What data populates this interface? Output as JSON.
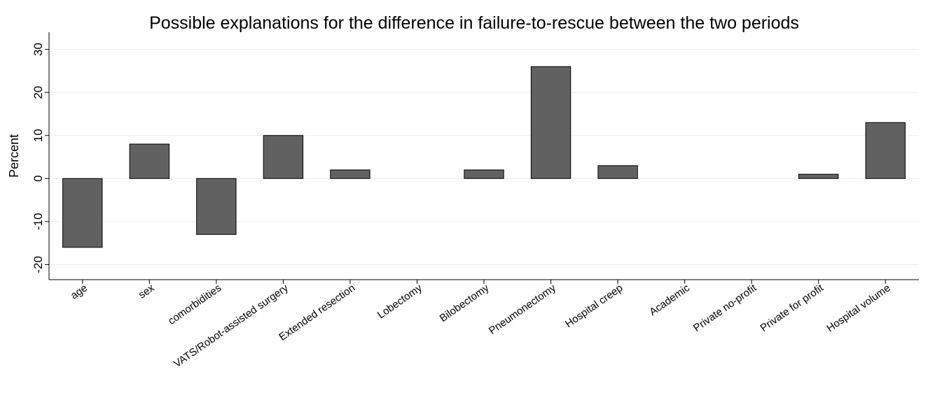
{
  "chart_data": {
    "type": "bar",
    "title": "Possible explanations for the difference in failure-to-rescue between the two periods",
    "xlabel": "",
    "ylabel": "Percent",
    "ylim": [
      -23.5,
      34
    ],
    "yticks": [
      -20,
      -10,
      0,
      10,
      20,
      30
    ],
    "yticklabels": [
      "-20",
      "-10",
      "0",
      "10",
      "20",
      "30"
    ],
    "grid": true,
    "legend": "none",
    "categories": [
      "age",
      "sex",
      "comorbidities",
      "VATS/Robot-assisted surgery",
      "Extended resection",
      "Lobectomy",
      "Bilobectomy",
      "Pneumonectomy",
      "Hospital creep",
      "Academic",
      "Private no-profit",
      "Private for profit",
      "Hospital volume"
    ],
    "values": [
      -16,
      8,
      -13,
      10,
      2,
      0,
      2,
      26,
      3,
      0,
      0,
      1,
      13
    ],
    "bar_color": "#616161",
    "bar_edge_color": "#000000"
  }
}
